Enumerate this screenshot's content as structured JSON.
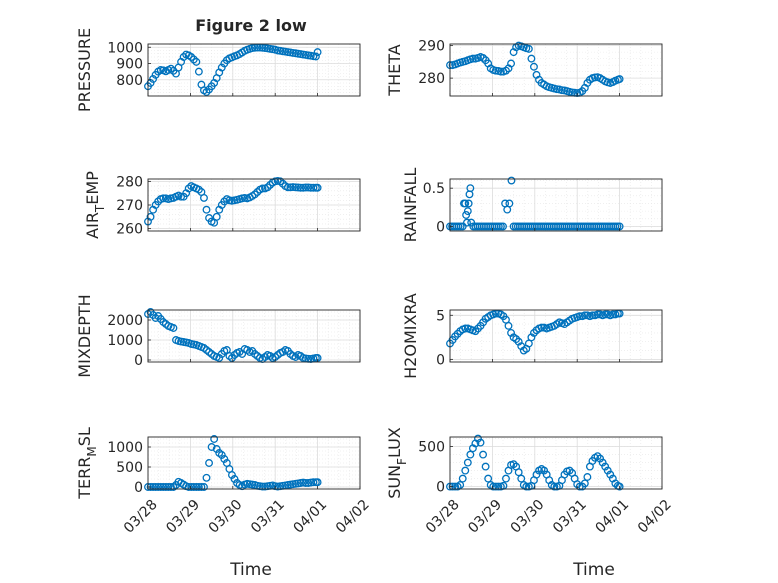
{
  "figure": {
    "title": "Figure 2 low",
    "xlabel": "Time",
    "marker_color": "#0072bd",
    "xticks": [
      "03/28",
      "03/29",
      "03/30",
      "03/31",
      "04/01",
      "04/02"
    ]
  },
  "chart_data": [
    {
      "type": "scatter",
      "id": "pressure",
      "ylabel_main": "PRESSURE",
      "ylabel_sub": "",
      "ylim": [
        700,
        1020
      ],
      "yticks": [
        800,
        900,
        1000
      ],
      "xlim": [
        0,
        5
      ],
      "grid": true,
      "x": [
        0.0,
        0.06,
        0.12,
        0.18,
        0.24,
        0.3,
        0.36,
        0.42,
        0.48,
        0.54,
        0.6,
        0.66,
        0.72,
        0.78,
        0.84,
        0.9,
        0.96,
        1.02,
        1.08,
        1.14,
        1.2,
        1.26,
        1.32,
        1.38,
        1.44,
        1.5,
        1.56,
        1.62,
        1.68,
        1.74,
        1.8,
        1.86,
        1.92,
        1.98,
        2.04,
        2.1,
        2.16,
        2.22,
        2.28,
        2.34,
        2.4,
        2.46,
        2.52,
        2.58,
        2.64,
        2.7,
        2.76,
        2.82,
        2.88,
        2.94,
        3.0,
        3.06,
        3.12,
        3.18,
        3.24,
        3.3,
        3.36,
        3.42,
        3.48,
        3.54,
        3.6,
        3.66,
        3.72,
        3.78,
        3.84,
        3.9,
        3.96,
        4.0
      ],
      "y": [
        760,
        780,
        805,
        830,
        850,
        860,
        858,
        852,
        860,
        868,
        855,
        838,
        875,
        910,
        940,
        955,
        950,
        940,
        925,
        910,
        850,
        770,
        735,
        725,
        740,
        760,
        780,
        810,
        845,
        875,
        900,
        920,
        932,
        938,
        945,
        950,
        958,
        968,
        978,
        985,
        990,
        995,
        997,
        998,
        998,
        997,
        995,
        993,
        990,
        988,
        985,
        980,
        978,
        975,
        973,
        970,
        968,
        965,
        963,
        960,
        958,
        955,
        953,
        950,
        948,
        945,
        943,
        970
      ]
    },
    {
      "type": "scatter",
      "id": "theta",
      "ylabel_main": "THETA",
      "ylabel_sub": "",
      "ylim": [
        274.5,
        290.5
      ],
      "yticks": [
        280,
        290
      ],
      "xlim": [
        0,
        5
      ],
      "grid": true,
      "x": [
        0.0,
        0.06,
        0.12,
        0.18,
        0.24,
        0.3,
        0.36,
        0.42,
        0.48,
        0.54,
        0.6,
        0.66,
        0.72,
        0.78,
        0.84,
        0.9,
        0.96,
        1.02,
        1.08,
        1.14,
        1.2,
        1.26,
        1.32,
        1.38,
        1.44,
        1.5,
        1.56,
        1.62,
        1.68,
        1.74,
        1.8,
        1.86,
        1.92,
        1.98,
        2.04,
        2.1,
        2.16,
        2.22,
        2.28,
        2.34,
        2.4,
        2.46,
        2.52,
        2.58,
        2.64,
        2.7,
        2.76,
        2.82,
        2.88,
        2.94,
        3.0,
        3.06,
        3.12,
        3.18,
        3.24,
        3.3,
        3.36,
        3.42,
        3.48,
        3.54,
        3.6,
        3.66,
        3.72,
        3.78,
        3.84,
        3.9,
        3.96,
        4.0
      ],
      "y": [
        284,
        284,
        284.2,
        284.5,
        284.8,
        285,
        285.2,
        285.5,
        285.8,
        286,
        286,
        286.2,
        286.5,
        286.2,
        285.5,
        284.5,
        283,
        282.5,
        282.3,
        282.2,
        282,
        282,
        282.3,
        283,
        284.5,
        288,
        289.5,
        290,
        289.8,
        289.5,
        289.2,
        289,
        286,
        283.5,
        281,
        279.5,
        278.5,
        278,
        277.5,
        277.2,
        277,
        276.8,
        276.6,
        276.5,
        276.3,
        276.2,
        276,
        275.8,
        275.6,
        275.5,
        275.4,
        275.5,
        276,
        277,
        278.5,
        279.5,
        280,
        280.2,
        280.3,
        280,
        279.5,
        279,
        278.7,
        278.5,
        278.8,
        279.2,
        279.5,
        279.7
      ]
    },
    {
      "type": "scatter",
      "id": "air_temp",
      "ylabel_main": "AIR",
      "ylabel_sub": "T",
      "ylabel_rest": "EMP",
      "ylim": [
        259,
        281
      ],
      "yticks": [
        260,
        270,
        280
      ],
      "xlim": [
        0,
        5
      ],
      "grid": true,
      "x": [
        0.0,
        0.06,
        0.12,
        0.18,
        0.24,
        0.3,
        0.36,
        0.42,
        0.48,
        0.54,
        0.6,
        0.66,
        0.72,
        0.78,
        0.84,
        0.9,
        0.96,
        1.02,
        1.08,
        1.14,
        1.2,
        1.26,
        1.32,
        1.38,
        1.44,
        1.5,
        1.56,
        1.62,
        1.68,
        1.74,
        1.8,
        1.86,
        1.92,
        1.98,
        2.04,
        2.1,
        2.16,
        2.22,
        2.28,
        2.34,
        2.4,
        2.46,
        2.52,
        2.58,
        2.64,
        2.7,
        2.76,
        2.82,
        2.88,
        2.94,
        3.0,
        3.06,
        3.12,
        3.18,
        3.24,
        3.3,
        3.36,
        3.42,
        3.48,
        3.54,
        3.6,
        3.66,
        3.72,
        3.78,
        3.84,
        3.9,
        3.96,
        4.0
      ],
      "y": [
        263,
        265,
        268,
        270,
        271.5,
        272.5,
        272.8,
        272.8,
        272.5,
        272.8,
        273,
        273.5,
        274,
        273.5,
        273.5,
        275,
        277,
        278,
        277.5,
        277,
        276.5,
        275.5,
        273,
        268,
        264.5,
        263,
        262.5,
        265,
        268,
        270,
        271.5,
        272.5,
        272,
        271.8,
        272,
        272.2,
        272.5,
        272.8,
        273,
        272.8,
        273.2,
        273.8,
        274.5,
        275.5,
        276.5,
        277,
        277,
        277.5,
        278.5,
        279.5,
        280,
        280.2,
        280,
        279,
        278,
        277.5,
        277.5,
        277.6,
        277.5,
        277.4,
        277.3,
        277.3,
        277.4,
        277.4,
        277.3,
        277.3,
        277.3,
        277.3
      ]
    },
    {
      "type": "scatter",
      "id": "rainfall",
      "ylabel_main": "RAINFALL",
      "ylabel_sub": "",
      "ylim": [
        -0.06,
        0.62
      ],
      "yticks": [
        0,
        0.5
      ],
      "xlim": [
        0,
        5
      ],
      "grid": true,
      "x": [
        0.0,
        0.05,
        0.1,
        0.15,
        0.2,
        0.25,
        0.3,
        0.33,
        0.36,
        0.38,
        0.4,
        0.42,
        0.44,
        0.46,
        0.48,
        0.5,
        0.55,
        0.6,
        0.65,
        0.7,
        0.75,
        0.8,
        0.85,
        0.9,
        0.95,
        1.0,
        1.05,
        1.1,
        1.15,
        1.2,
        1.25,
        1.3,
        1.35,
        1.4,
        1.45,
        1.5,
        1.55,
        1.6,
        1.65,
        1.7,
        1.75,
        1.8,
        1.85,
        1.9,
        1.95,
        2.0,
        2.05,
        2.1,
        2.15,
        2.2,
        2.25,
        2.3,
        2.35,
        2.4,
        2.45,
        2.5,
        2.55,
        2.6,
        2.65,
        2.7,
        2.75,
        2.8,
        2.85,
        2.9,
        2.95,
        3.0,
        3.05,
        3.1,
        3.15,
        3.2,
        3.25,
        3.3,
        3.35,
        3.4,
        3.45,
        3.5,
        3.55,
        3.6,
        3.65,
        3.7,
        3.75,
        3.8,
        3.85,
        3.9,
        3.95,
        4.0
      ],
      "y": [
        0,
        0,
        0,
        0,
        0,
        0,
        0,
        0.3,
        0.3,
        0.15,
        0.05,
        0.2,
        0.3,
        0.42,
        0.5,
        0.05,
        0,
        0,
        0,
        0,
        0,
        0,
        0,
        0,
        0,
        0,
        0,
        0,
        0,
        0,
        0,
        0.3,
        0.22,
        0.3,
        0.6,
        0,
        0,
        0,
        0,
        0,
        0,
        0,
        0,
        0,
        0,
        0,
        0,
        0,
        0,
        0,
        0,
        0,
        0,
        0,
        0,
        0,
        0,
        0,
        0,
        0,
        0,
        0,
        0,
        0,
        0,
        0,
        0,
        0,
        0,
        0,
        0,
        0,
        0,
        0,
        0,
        0,
        0,
        0,
        0,
        0,
        0,
        0,
        0,
        0,
        0,
        0
      ]
    },
    {
      "type": "scatter",
      "id": "mixdepth",
      "ylabel_main": "MIXDEPTH",
      "ylabel_sub": "",
      "ylim": [
        -100,
        2500
      ],
      "yticks": [
        0,
        1000,
        2000
      ],
      "xlim": [
        0,
        5
      ],
      "grid": true,
      "x": [
        0.0,
        0.06,
        0.12,
        0.18,
        0.24,
        0.3,
        0.36,
        0.42,
        0.48,
        0.54,
        0.6,
        0.66,
        0.72,
        0.78,
        0.84,
        0.9,
        0.96,
        1.02,
        1.08,
        1.14,
        1.2,
        1.26,
        1.32,
        1.38,
        1.44,
        1.5,
        1.56,
        1.62,
        1.68,
        1.74,
        1.8,
        1.86,
        1.92,
        1.98,
        2.04,
        2.1,
        2.16,
        2.22,
        2.28,
        2.34,
        2.4,
        2.46,
        2.52,
        2.58,
        2.64,
        2.7,
        2.76,
        2.82,
        2.88,
        2.94,
        3.0,
        3.06,
        3.12,
        3.18,
        3.24,
        3.3,
        3.36,
        3.42,
        3.48,
        3.54,
        3.6,
        3.66,
        3.72,
        3.78,
        3.84,
        3.9,
        3.96,
        4.0
      ],
      "y": [
        2300,
        2400,
        2250,
        2100,
        2200,
        2050,
        1900,
        1800,
        1700,
        1650,
        1600,
        1000,
        950,
        920,
        900,
        880,
        850,
        800,
        780,
        750,
        700,
        650,
        600,
        500,
        400,
        300,
        200,
        150,
        100,
        300,
        450,
        500,
        200,
        100,
        250,
        350,
        400,
        300,
        550,
        500,
        400,
        450,
        300,
        200,
        100,
        50,
        150,
        250,
        200,
        100,
        150,
        250,
        350,
        400,
        500,
        450,
        300,
        200,
        150,
        250,
        200,
        100,
        80,
        60,
        50,
        80,
        100,
        100
      ]
    },
    {
      "type": "scatter",
      "id": "h2omixra",
      "ylabel_main": "H2OMIXRA",
      "ylabel_sub": "",
      "ylim": [
        -0.3,
        5.6
      ],
      "yticks": [
        0,
        5
      ],
      "xlim": [
        0,
        5
      ],
      "grid": true,
      "x": [
        0.0,
        0.06,
        0.12,
        0.18,
        0.24,
        0.3,
        0.36,
        0.42,
        0.48,
        0.54,
        0.6,
        0.66,
        0.72,
        0.78,
        0.84,
        0.9,
        0.96,
        1.02,
        1.08,
        1.14,
        1.2,
        1.26,
        1.32,
        1.38,
        1.44,
        1.5,
        1.56,
        1.62,
        1.68,
        1.74,
        1.8,
        1.86,
        1.92,
        1.98,
        2.04,
        2.1,
        2.16,
        2.22,
        2.28,
        2.34,
        2.4,
        2.46,
        2.52,
        2.58,
        2.64,
        2.7,
        2.76,
        2.82,
        2.88,
        2.94,
        3.0,
        3.06,
        3.12,
        3.18,
        3.24,
        3.3,
        3.36,
        3.42,
        3.48,
        3.54,
        3.6,
        3.66,
        3.72,
        3.78,
        3.84,
        3.9,
        3.96,
        4.0
      ],
      "y": [
        1.8,
        2.2,
        2.6,
        2.9,
        3.2,
        3.4,
        3.5,
        3.5,
        3.4,
        3.3,
        3.2,
        3.5,
        3.8,
        4.2,
        4.6,
        4.8,
        5.0,
        5.1,
        5.2,
        5.2,
        5.1,
        4.9,
        4.5,
        3.8,
        3.0,
        2.5,
        2.3,
        2.0,
        1.5,
        1.0,
        1.2,
        1.8,
        2.5,
        3.0,
        3.3,
        3.5,
        3.6,
        3.6,
        3.5,
        3.6,
        3.7,
        3.8,
        4.0,
        4.2,
        4.1,
        4.0,
        4.2,
        4.4,
        4.6,
        4.7,
        4.8,
        4.9,
        4.9,
        5.0,
        5.0,
        4.9,
        5.0,
        5.0,
        5.1,
        5.1,
        5.0,
        5.1,
        5.1,
        5.0,
        5.1,
        5.1,
        5.2,
        5.2
      ]
    },
    {
      "type": "scatter",
      "id": "terr_msl",
      "ylabel_main": "TERR",
      "ylabel_sub": "M",
      "ylabel_rest": "SL",
      "ylim": [
        -50,
        1250
      ],
      "yticks": [
        0,
        500,
        1000
      ],
      "xlim": [
        0,
        5
      ],
      "grid": true,
      "x": [
        0.0,
        0.06,
        0.12,
        0.18,
        0.24,
        0.3,
        0.36,
        0.42,
        0.48,
        0.54,
        0.6,
        0.66,
        0.72,
        0.78,
        0.84,
        0.9,
        0.96,
        1.02,
        1.08,
        1.14,
        1.2,
        1.26,
        1.32,
        1.38,
        1.44,
        1.5,
        1.56,
        1.62,
        1.68,
        1.74,
        1.8,
        1.86,
        1.92,
        1.98,
        2.04,
        2.1,
        2.16,
        2.22,
        2.28,
        2.34,
        2.4,
        2.46,
        2.52,
        2.58,
        2.64,
        2.7,
        2.76,
        2.82,
        2.88,
        2.94,
        3.0,
        3.06,
        3.12,
        3.18,
        3.24,
        3.3,
        3.36,
        3.42,
        3.48,
        3.54,
        3.6,
        3.66,
        3.72,
        3.78,
        3.84,
        3.9,
        3.96,
        4.0
      ],
      "y": [
        0,
        0,
        0,
        0,
        0,
        0,
        0,
        0,
        0,
        0,
        0,
        50,
        130,
        100,
        60,
        20,
        0,
        0,
        0,
        0,
        0,
        0,
        0,
        230,
        600,
        1000,
        1200,
        950,
        850,
        800,
        700,
        600,
        450,
        300,
        200,
        100,
        50,
        20,
        60,
        80,
        70,
        60,
        50,
        30,
        20,
        10,
        10,
        20,
        30,
        40,
        20,
        10,
        20,
        30,
        40,
        50,
        60,
        70,
        80,
        90,
        100,
        110,
        100,
        100,
        110,
        120,
        120,
        120
      ]
    },
    {
      "type": "scatter",
      "id": "sun_flux",
      "ylabel_main": "SUN",
      "ylabel_sub": "F",
      "ylabel_rest": "LUX",
      "ylim": [
        -30,
        620
      ],
      "yticks": [
        0,
        500
      ],
      "xlim": [
        0,
        5
      ],
      "grid": true,
      "x": [
        0.0,
        0.06,
        0.12,
        0.18,
        0.24,
        0.3,
        0.36,
        0.42,
        0.48,
        0.54,
        0.6,
        0.66,
        0.72,
        0.78,
        0.84,
        0.9,
        0.96,
        1.02,
        1.08,
        1.14,
        1.2,
        1.26,
        1.32,
        1.38,
        1.44,
        1.5,
        1.56,
        1.62,
        1.68,
        1.74,
        1.8,
        1.86,
        1.92,
        1.98,
        2.04,
        2.1,
        2.16,
        2.22,
        2.28,
        2.34,
        2.4,
        2.46,
        2.52,
        2.58,
        2.64,
        2.7,
        2.76,
        2.82,
        2.88,
        2.94,
        3.0,
        3.06,
        3.12,
        3.18,
        3.24,
        3.3,
        3.36,
        3.42,
        3.48,
        3.54,
        3.6,
        3.66,
        3.72,
        3.78,
        3.84,
        3.9,
        3.96,
        4.0
      ],
      "y": [
        0,
        0,
        0,
        0,
        20,
        100,
        200,
        300,
        400,
        480,
        540,
        600,
        550,
        400,
        250,
        100,
        20,
        0,
        0,
        0,
        0,
        10,
        100,
        200,
        270,
        280,
        250,
        180,
        100,
        20,
        0,
        0,
        10,
        80,
        150,
        200,
        220,
        200,
        150,
        80,
        20,
        0,
        0,
        10,
        80,
        150,
        190,
        200,
        170,
        100,
        30,
        0,
        0,
        40,
        120,
        250,
        320,
        360,
        380,
        350,
        300,
        250,
        200,
        150,
        100,
        40,
        10,
        0
      ]
    }
  ]
}
